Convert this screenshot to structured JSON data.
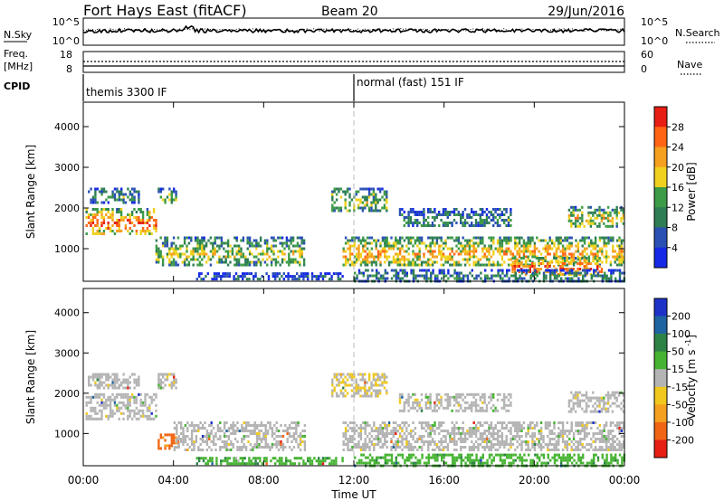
{
  "header": {
    "station": "Fort Hays East (fitACF)",
    "beam": "Beam 20",
    "date": "29/Jun/2016"
  },
  "noise_panel": {
    "left_label": "N.Sky",
    "left_ticks": [
      "10^5",
      "10^0"
    ],
    "right_label": "N.Search",
    "right_ticks": [
      "10^5",
      "10^0"
    ]
  },
  "freq_panel": {
    "left_label_1": "Freq.",
    "left_label_2": "[MHz]",
    "left_ticks": [
      "18",
      "8"
    ],
    "right_label": "Nave",
    "right_ticks": [
      "60",
      "0"
    ]
  },
  "cpid_panel": {
    "label": "CPID",
    "modes": [
      {
        "text": "themis 3300 IF",
        "start_hour": 0
      },
      {
        "text": "normal (fast) 151 IF",
        "start_hour": 12
      }
    ]
  },
  "chart_data": [
    {
      "type": "heatmap",
      "parameter": "power",
      "xlabel": "",
      "ylabel": "Slant Range [km]",
      "xlim_hours": [
        0,
        24
      ],
      "ylim_km": [
        200,
        4600
      ],
      "yticks": [
        1000,
        2000,
        3000,
        4000
      ],
      "colorbar": {
        "label": "Power [dB]",
        "ticks": [
          "4",
          "8",
          "12",
          "16",
          "20",
          "24",
          "28"
        ],
        "colors": [
          "#1428e6",
          "#2a50b4",
          "#2e7d55",
          "#3c9b46",
          "#f0d21e",
          "#f5a01e",
          "#ff6414",
          "#e61e14"
        ]
      },
      "echo_regions": [
        {
          "h0": 0.1,
          "h1": 3.2,
          "r0": 1350,
          "r1": 2000,
          "level": 0.85
        },
        {
          "h0": 0.2,
          "h1": 2.5,
          "r0": 2100,
          "r1": 2500,
          "level": 0.35
        },
        {
          "h0": 3.3,
          "h1": 4.1,
          "r0": 2100,
          "r1": 2500,
          "level": 0.45
        },
        {
          "h0": 3.2,
          "h1": 9.8,
          "r0": 600,
          "r1": 1300,
          "level": 0.55
        },
        {
          "h0": 5.0,
          "h1": 11.5,
          "r0": 230,
          "r1": 420,
          "level": 0.2
        },
        {
          "h0": 11.0,
          "h1": 13.5,
          "r0": 1900,
          "r1": 2500,
          "level": 0.5
        },
        {
          "h0": 11.5,
          "h1": 24.0,
          "r0": 600,
          "r1": 1300,
          "level": 0.7
        },
        {
          "h0": 19.0,
          "h1": 23.0,
          "r0": 350,
          "r1": 800,
          "level": 0.9
        },
        {
          "h0": 12.0,
          "h1": 24.0,
          "r0": 230,
          "r1": 500,
          "level": 0.35
        },
        {
          "h0": 14.0,
          "h1": 19.0,
          "r0": 1550,
          "r1": 2000,
          "level": 0.35
        },
        {
          "h0": 21.5,
          "h1": 24.0,
          "r0": 1550,
          "r1": 2050,
          "level": 0.6
        }
      ]
    },
    {
      "type": "heatmap",
      "parameter": "velocity",
      "xlabel": "Time UT",
      "ylabel": "Slant Range [km]",
      "xlim_hours": [
        0,
        24
      ],
      "ylim_km": [
        200,
        4600
      ],
      "xticks": [
        "00:00",
        "04:00",
        "08:00",
        "12:00",
        "16:00",
        "20:00",
        "00:00"
      ],
      "yticks": [
        1000,
        2000,
        3000,
        4000
      ],
      "colorbar": {
        "label": "Velocity [m s^-1]",
        "ticks": [
          "200",
          "100",
          "50",
          "15",
          "-15",
          "-50",
          "-100",
          "-200"
        ],
        "colors": [
          "#1e32c8",
          "#1e64a0",
          "#2d8246",
          "#46b432",
          "#b4b4b4",
          "#f0c81e",
          "#f5a01e",
          "#f06414",
          "#e61e14"
        ]
      },
      "echo_regions": [
        {
          "h0": 0.1,
          "h1": 3.2,
          "r0": 1350,
          "r1": 2000,
          "level": 0.5
        },
        {
          "h0": 0.2,
          "h1": 2.5,
          "r0": 2100,
          "r1": 2500,
          "level": 0.5
        },
        {
          "h0": 3.3,
          "h1": 4.1,
          "r0": 2100,
          "r1": 2500,
          "level": 0.5
        },
        {
          "h0": 3.3,
          "h1": 4.2,
          "r0": 600,
          "r1": 1000,
          "level": 0.2
        },
        {
          "h0": 4.0,
          "h1": 9.8,
          "r0": 600,
          "r1": 1300,
          "level": 0.5
        },
        {
          "h0": 5.0,
          "h1": 11.5,
          "r0": 230,
          "r1": 420,
          "level": 0.62
        },
        {
          "h0": 11.0,
          "h1": 13.5,
          "r0": 1900,
          "r1": 2500,
          "level": 0.45
        },
        {
          "h0": 11.5,
          "h1": 24.0,
          "r0": 600,
          "r1": 1300,
          "level": 0.5
        },
        {
          "h0": 12.0,
          "h1": 24.0,
          "r0": 230,
          "r1": 500,
          "level": 0.62
        },
        {
          "h0": 14.0,
          "h1": 19.0,
          "r0": 1550,
          "r1": 2000,
          "level": 0.5
        },
        {
          "h0": 21.5,
          "h1": 24.0,
          "r0": 1550,
          "r1": 2050,
          "level": 0.5
        }
      ]
    }
  ]
}
